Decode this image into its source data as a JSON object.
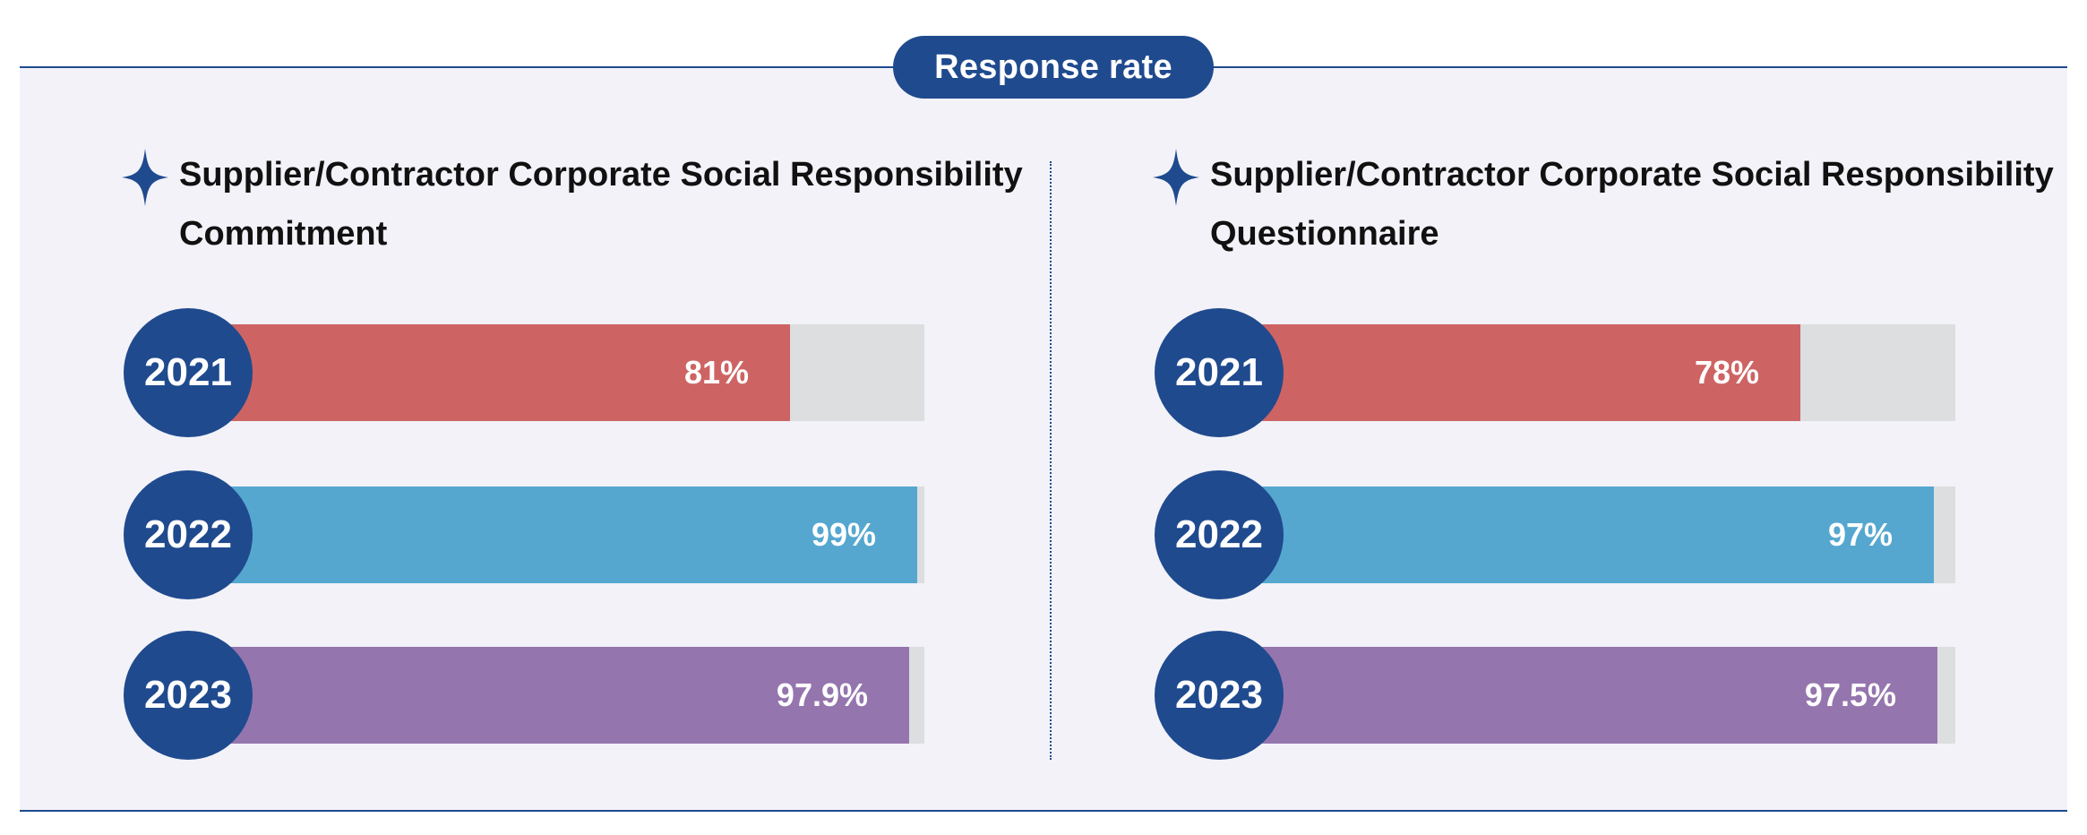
{
  "header": {
    "title": "Response rate"
  },
  "chart_data": [
    {
      "type": "bar",
      "title": "Supplier/Contractor Corporate Social Responsibility Commitment",
      "categories": [
        "2021",
        "2022",
        "2023"
      ],
      "values": [
        81,
        99,
        97.9
      ],
      "value_labels": [
        "81%",
        "99%",
        "97.9%"
      ],
      "xlim": [
        0,
        100
      ],
      "unit": "%",
      "colors": [
        "#cd6463",
        "#55a7cf",
        "#9575ae"
      ],
      "track_color": "#dcdedf"
    },
    {
      "type": "bar",
      "title": "Supplier/Contractor Corporate Social Responsibility Questionnaire",
      "categories": [
        "2021",
        "2022",
        "2023"
      ],
      "values": [
        78,
        97,
        97.5
      ],
      "value_labels": [
        "78%",
        "97%",
        "97.5%"
      ],
      "xlim": [
        0,
        100
      ],
      "unit": "%",
      "colors": [
        "#cd6463",
        "#55a7cf",
        "#9575ae"
      ],
      "track_color": "#dcdedf"
    }
  ],
  "theme": {
    "accent": "#1f4a8e",
    "panel_bg": "#f2f2f8"
  },
  "icons": {
    "title_marker": "sparkle-star-icon"
  }
}
